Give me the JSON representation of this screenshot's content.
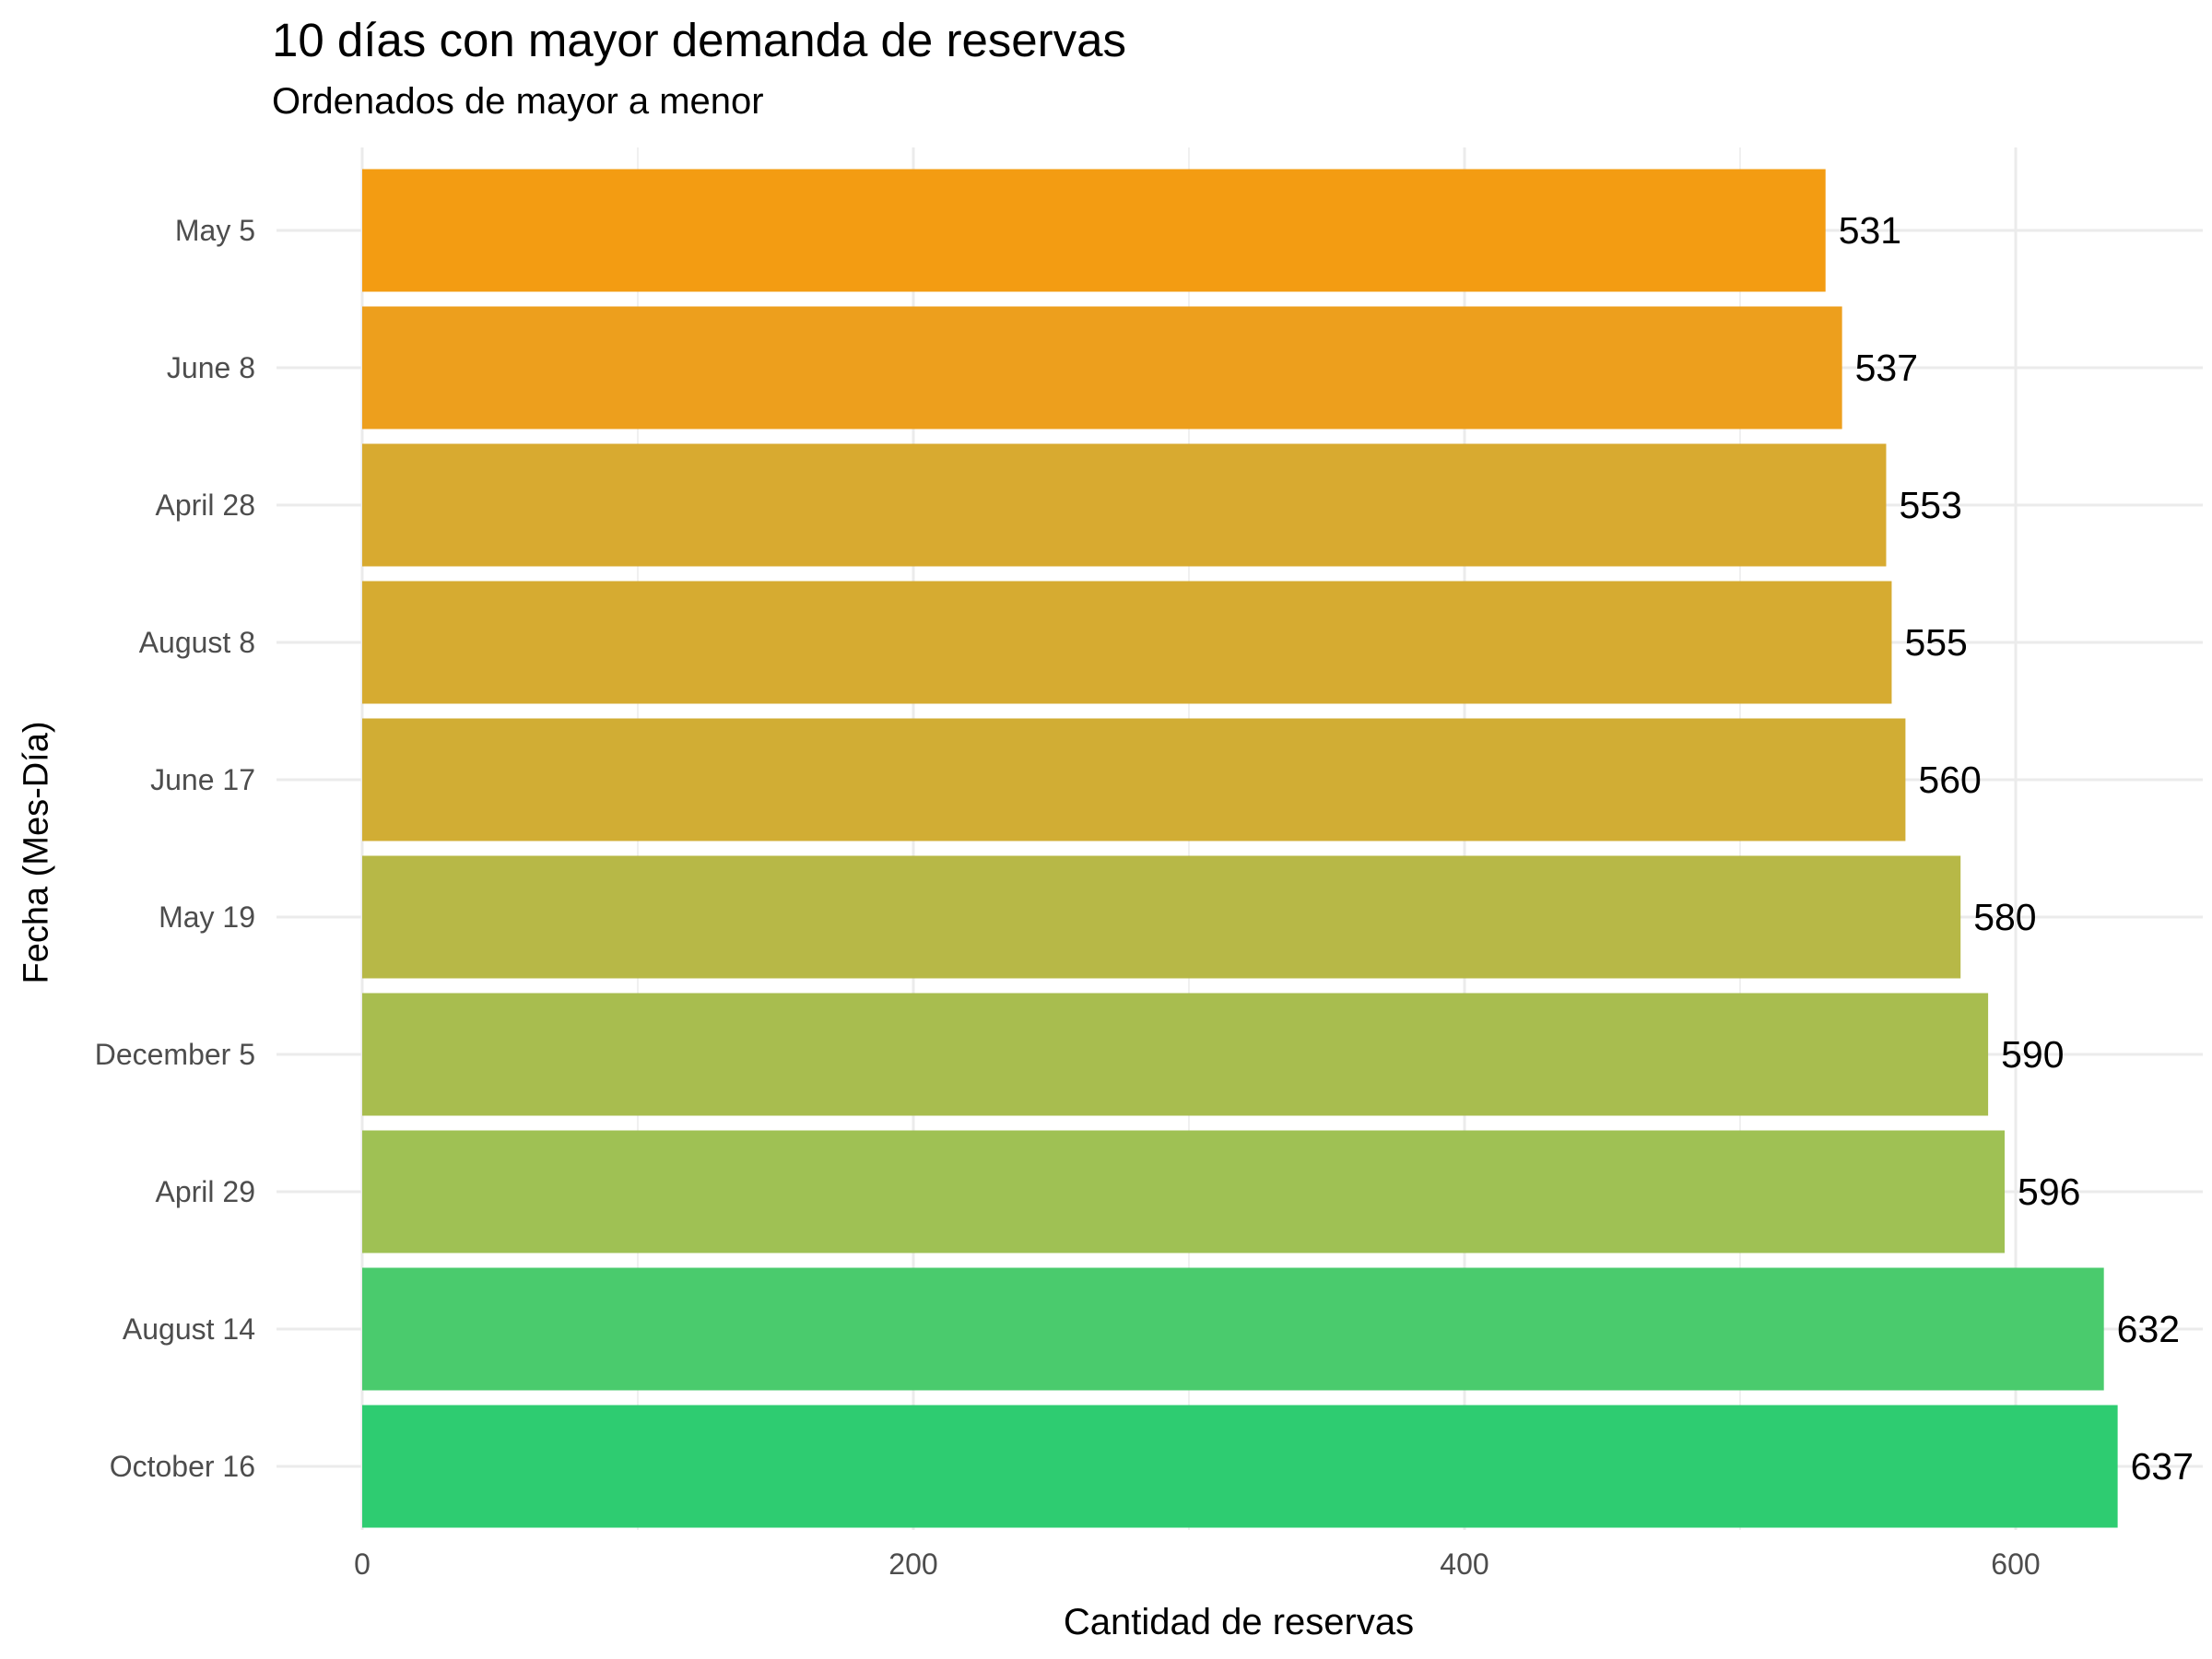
{
  "chart_data": {
    "type": "bar",
    "orientation": "horizontal",
    "title": "10 días con mayor demanda de reservas",
    "subtitle": "Ordenados de mayor a menor",
    "xlabel": "Cantidad de reservas",
    "ylabel": "Fecha (Mes-Día)",
    "xlim": [
      0,
      660
    ],
    "xticks": [
      0,
      200,
      400,
      600
    ],
    "grid": true,
    "legend": "none",
    "categories": [
      "May 5",
      "June 8",
      "April 28",
      "August 8",
      "June 17",
      "May 19",
      "December 5",
      "April 29",
      "August 14",
      "October 16"
    ],
    "values": [
      531,
      537,
      553,
      555,
      560,
      580,
      590,
      596,
      632,
      637
    ],
    "bar_colors": [
      "#F39C12",
      "#ED9F1D",
      "#D8AA30",
      "#D6AB31",
      "#D1AD34",
      "#B7B847",
      "#A8BD4F",
      "#9FC154",
      "#4ACB6D",
      "#2ECC71"
    ]
  }
}
